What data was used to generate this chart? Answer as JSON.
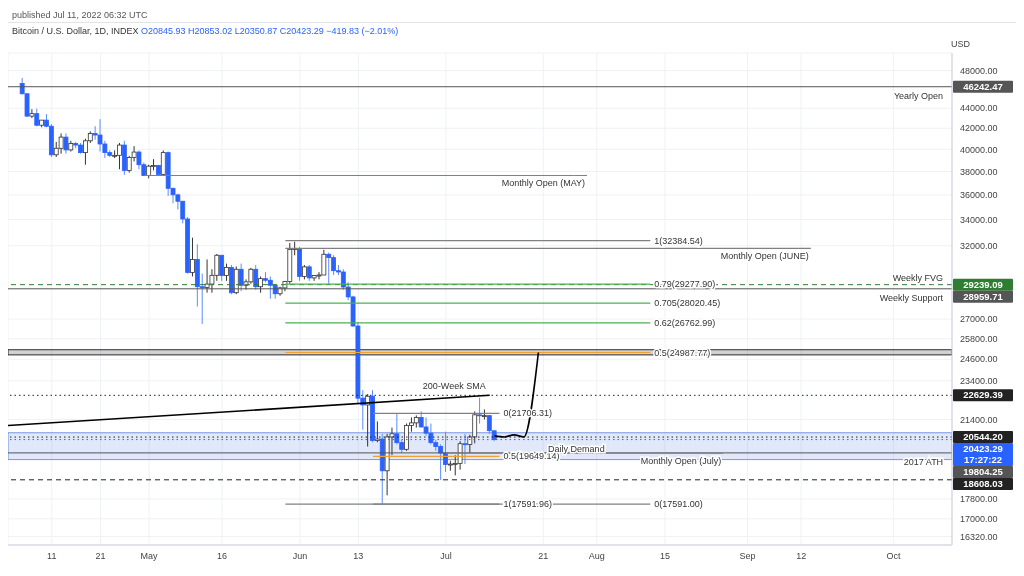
{
  "chart_data": {
    "type": "candlestick",
    "title": "Bitcoin / U.S. Dollar, 1D, INDEX",
    "subtitle": "O20845.93 H20853.02 L20350.87 C20423.29 −419.83 (−2.01%)",
    "ylabel": "USD",
    "x": [
      "2022-04-05",
      "2022-04-06",
      "2022-04-07",
      "2022-04-08",
      "2022-04-09",
      "2022-04-10",
      "2022-04-11",
      "2022-04-12",
      "2022-04-13",
      "2022-04-14",
      "2022-04-15",
      "2022-04-16",
      "2022-04-17",
      "2022-04-18",
      "2022-04-19",
      "2022-04-20",
      "2022-04-21",
      "2022-04-22",
      "2022-04-23",
      "2022-04-24",
      "2022-04-25",
      "2022-04-26",
      "2022-04-27",
      "2022-04-28",
      "2022-04-29",
      "2022-04-30",
      "2022-05-01",
      "2022-05-02",
      "2022-05-03",
      "2022-05-04",
      "2022-05-05",
      "2022-05-06",
      "2022-05-07",
      "2022-05-08",
      "2022-05-09",
      "2022-05-10",
      "2022-05-11",
      "2022-05-12",
      "2022-05-13",
      "2022-05-14",
      "2022-05-15",
      "2022-05-16",
      "2022-05-17",
      "2022-05-18",
      "2022-05-19",
      "2022-05-20",
      "2022-05-21",
      "2022-05-22",
      "2022-05-23",
      "2022-05-24",
      "2022-05-25",
      "2022-05-26",
      "2022-05-27",
      "2022-05-28",
      "2022-05-29",
      "2022-05-30",
      "2022-05-31",
      "2022-06-01",
      "2022-06-02",
      "2022-06-03",
      "2022-06-04",
      "2022-06-05",
      "2022-06-06",
      "2022-06-07",
      "2022-06-08",
      "2022-06-09",
      "2022-06-10",
      "2022-06-11",
      "2022-06-12",
      "2022-06-13",
      "2022-06-14",
      "2022-06-15",
      "2022-06-16",
      "2022-06-17",
      "2022-06-18",
      "2022-06-19",
      "2022-06-20",
      "2022-06-21",
      "2022-06-22",
      "2022-06-23",
      "2022-06-24",
      "2022-06-25",
      "2022-06-26",
      "2022-06-27",
      "2022-06-28",
      "2022-06-29",
      "2022-06-30",
      "2022-07-01",
      "2022-07-02",
      "2022-07-03",
      "2022-07-04",
      "2022-07-05",
      "2022-07-06",
      "2022-07-07",
      "2022-07-08",
      "2022-07-09",
      "2022-07-10",
      "2022-07-11"
    ],
    "ohlc": [
      [
        46600,
        47200,
        45400,
        45500
      ],
      [
        45500,
        45500,
        43100,
        43200
      ],
      [
        43200,
        43900,
        43000,
        43450
      ],
      [
        43450,
        43950,
        42200,
        42300
      ],
      [
        42300,
        42800,
        42100,
        42800
      ],
      [
        42800,
        43400,
        42100,
        42200
      ],
      [
        42200,
        42400,
        39300,
        39500
      ],
      [
        39500,
        40700,
        39300,
        40100
      ],
      [
        40100,
        41500,
        39600,
        41150
      ],
      [
        41150,
        41500,
        39600,
        39950
      ],
      [
        39950,
        40800,
        39800,
        40550
      ],
      [
        40550,
        40700,
        40100,
        40400
      ],
      [
        40400,
        40600,
        39600,
        39700
      ],
      [
        39700,
        41000,
        38600,
        40800
      ],
      [
        40800,
        41700,
        40600,
        41500
      ],
      [
        41500,
        42200,
        40900,
        41350
      ],
      [
        41350,
        42900,
        39800,
        40500
      ],
      [
        40500,
        40800,
        39200,
        39700
      ],
      [
        39700,
        39900,
        39300,
        39450
      ],
      [
        39450,
        39900,
        39200,
        39450
      ],
      [
        39450,
        40600,
        38200,
        40400
      ],
      [
        40400,
        40800,
        37700,
        38100
      ],
      [
        38100,
        39400,
        37900,
        39250
      ],
      [
        39250,
        40300,
        38900,
        39750
      ],
      [
        39750,
        39900,
        38200,
        38600
      ],
      [
        38600,
        38800,
        37600,
        37650
      ],
      [
        37650,
        38600,
        37400,
        38470
      ],
      [
        38470,
        39100,
        38100,
        38530
      ],
      [
        38530,
        38600,
        37600,
        37750
      ],
      [
        37750,
        39900,
        37600,
        39700
      ],
      [
        39700,
        39800,
        35900,
        36550
      ],
      [
        36550,
        36600,
        35300,
        36000
      ],
      [
        36000,
        36100,
        34800,
        35470
      ],
      [
        35470,
        35500,
        33700,
        34040
      ],
      [
        34040,
        34200,
        30000,
        30080
      ],
      [
        30080,
        32600,
        29800,
        31000
      ],
      [
        31000,
        32100,
        27800,
        29100
      ],
      [
        29100,
        30000,
        26700,
        29050
      ],
      [
        29050,
        31000,
        28700,
        29280
      ],
      [
        29280,
        30300,
        28700,
        29880
      ],
      [
        29880,
        31400,
        29500,
        31300
      ],
      [
        31300,
        31300,
        29500,
        29860
      ],
      [
        29860,
        30700,
        29500,
        30430
      ],
      [
        30430,
        30600,
        28600,
        28700
      ],
      [
        28700,
        30500,
        28600,
        30300
      ],
      [
        30300,
        30700,
        28800,
        29200
      ],
      [
        29200,
        29600,
        28900,
        29430
      ],
      [
        29430,
        30400,
        29300,
        30300
      ],
      [
        30300,
        30600,
        28900,
        29100
      ],
      [
        29100,
        29800,
        28700,
        29650
      ],
      [
        29650,
        30100,
        29400,
        29540
      ],
      [
        29540,
        29800,
        28300,
        29200
      ],
      [
        29200,
        29300,
        28300,
        28630
      ],
      [
        28630,
        29100,
        28500,
        29020
      ],
      [
        29020,
        29500,
        28800,
        29450
      ],
      [
        29450,
        32200,
        29300,
        31730
      ],
      [
        31730,
        32300,
        31300,
        31800
      ],
      [
        31800,
        31900,
        29500,
        29800
      ],
      [
        29800,
        30600,
        29600,
        30470
      ],
      [
        30470,
        30600,
        29500,
        29700
      ],
      [
        29700,
        29900,
        29500,
        29860
      ],
      [
        29860,
        30100,
        29600,
        29900
      ],
      [
        29900,
        31700,
        29900,
        31370
      ],
      [
        31370,
        31500,
        29300,
        31130
      ],
      [
        31130,
        31300,
        29900,
        30200
      ],
      [
        30200,
        30600,
        29900,
        30110
      ],
      [
        30110,
        30300,
        28900,
        29080
      ],
      [
        29080,
        29400,
        28200,
        28420
      ],
      [
        28420,
        28500,
        26500,
        26570
      ],
      [
        26570,
        26800,
        22200,
        22480
      ],
      [
        22480,
        22900,
        20900,
        22130
      ],
      [
        22130,
        22700,
        20100,
        22580
      ],
      [
        22580,
        22900,
        20300,
        20380
      ],
      [
        20380,
        21300,
        20300,
        20450
      ],
      [
        20450,
        20700,
        17600,
        19000
      ],
      [
        19000,
        20700,
        17950,
        20550
      ],
      [
        20550,
        21000,
        19700,
        20700
      ],
      [
        20700,
        21700,
        20200,
        20280
      ],
      [
        20280,
        20400,
        19800,
        19970
      ],
      [
        19970,
        21200,
        19900,
        21100
      ],
      [
        21100,
        21500,
        20800,
        21230
      ],
      [
        21230,
        21600,
        21000,
        21500
      ],
      [
        21500,
        21800,
        21000,
        21030
      ],
      [
        21030,
        21500,
        20600,
        20730
      ],
      [
        20730,
        21200,
        20200,
        20280
      ],
      [
        20280,
        20400,
        19900,
        20100
      ],
      [
        20100,
        20200,
        18600,
        19800
      ],
      [
        19800,
        20800,
        18950,
        19280
      ],
      [
        19280,
        19450,
        19000,
        19300
      ],
      [
        19300,
        19700,
        18800,
        19330
      ],
      [
        19330,
        20350,
        19050,
        20230
      ],
      [
        20230,
        20700,
        19300,
        20190
      ],
      [
        20190,
        20650,
        19800,
        20550
      ],
      [
        20550,
        21800,
        20250,
        21630
      ],
      [
        21630,
        22500,
        21200,
        21590
      ],
      [
        21590,
        21900,
        21400,
        21590
      ],
      [
        21590,
        21600,
        20700,
        20850
      ],
      [
        20845.93,
        20853.02,
        20350.87,
        20423.29
      ]
    ],
    "series": [
      {
        "type": "line",
        "color": "#000000",
        "x": [
          "2022-04-02",
          "2022-07-10"
        ],
        "values": [
          21100,
          22629.39
        ]
      },
      {
        "type": "line",
        "color": "#808080",
        "x": [
          "2022-04-30",
          "2022-07-30"
        ],
        "values": [
          37650,
          37650
        ]
      },
      {
        "type": "line",
        "color": "#808080",
        "x": [
          "2022-05-29",
          "2022-09-14"
        ],
        "values": [
          31800,
          31800
        ]
      },
      {
        "type": "line",
        "color": "#808080",
        "x": [
          "2022-05-29",
          "2022-08-12"
        ],
        "values": [
          32384.54,
          32384.54
        ]
      },
      {
        "type": "line",
        "color": "#4caf50",
        "x": [
          "2022-05-29",
          "2022-08-12"
        ],
        "values": [
          29277.9,
          29277.9
        ]
      },
      {
        "type": "line",
        "color": "#4caf50",
        "x": [
          "2022-05-29",
          "2022-08-12"
        ],
        "values": [
          28020.45,
          28020.45
        ]
      },
      {
        "type": "line",
        "color": "#4caf50",
        "x": [
          "2022-05-29",
          "2022-08-12"
        ],
        "values": [
          26762.99,
          26762.99
        ]
      },
      {
        "type": "line",
        "color": "#f0a030",
        "x": [
          "2022-05-29",
          "2022-08-12"
        ],
        "values": [
          24987.77,
          24987.77
        ]
      },
      {
        "type": "line",
        "color": "#808080",
        "x": [
          "2022-05-29",
          "2022-08-12"
        ],
        "values": [
          17591,
          17591
        ]
      },
      {
        "type": "line",
        "color": "#808080",
        "x": [
          "2022-06-16",
          "2022-07-12"
        ],
        "values": [
          21706.31,
          21706.31
        ]
      },
      {
        "type": "line",
        "color": "#f0a030",
        "x": [
          "2022-06-16",
          "2022-07-12"
        ],
        "values": [
          19649.14,
          19649.14
        ]
      },
      {
        "type": "line",
        "color": "#808080",
        "x": [
          "2022-06-16",
          "2022-07-12"
        ],
        "values": [
          17591.96,
          17591.96
        ]
      },
      {
        "type": "line",
        "color": "#808080",
        "x": [
          "2022-07-01",
          "2022-08-27"
        ],
        "values": [
          19790,
          19790
        ]
      },
      {
        "type": "line",
        "color": "#000000",
        "x": [
          "2022-07-11",
          "2022-07-13",
          "2022-07-15",
          "2022-07-17",
          "2022-07-20"
        ],
        "values": [
          20600,
          20550,
          20650,
          20550,
          24987.77
        ]
      }
    ],
    "ref_lines": [
      {
        "axis": "y",
        "value": 46242.47,
        "label": "46242.47",
        "color": "#555555"
      },
      {
        "axis": "y",
        "value": 29239.09,
        "label": "29239.09",
        "color": "#2e7d32",
        "line_style": "dashed"
      },
      {
        "axis": "y",
        "value": 28959.71,
        "label": "28959.71",
        "color": "#555555"
      },
      {
        "axis": "y",
        "value": 22629.39,
        "label": "22629.39",
        "color": "#222222",
        "line_style": "dotted"
      },
      {
        "axis": "y",
        "value": 20544.2,
        "label": "20544.20",
        "color": "#222222",
        "line_style": "dotted"
      },
      {
        "axis": "y",
        "value": 20423.29,
        "label": "20423.29\n17:27:22",
        "color": "#2962ff",
        "line_style": "dotted"
      },
      {
        "axis": "y",
        "value": 19804.25,
        "label": "19804.25",
        "color": "#555555"
      },
      {
        "axis": "y",
        "value": 18608.03,
        "label": "18608.03",
        "color": "#222222",
        "line_style": "dashed"
      }
    ],
    "bands": [
      {
        "axis": "y",
        "from": 19500,
        "to": 20750,
        "color": "#5b7fe0"
      },
      {
        "axis": "y",
        "from": 24850,
        "to": 25150,
        "color": "#000000"
      }
    ],
    "annotations": [
      "published Jul 11, 2022 06:32 UTC",
      {
        "text": "Yearly Open",
        "x": "2022-10-12",
        "y": 46242.47
      },
      {
        "text": "Monthly Open (MAY)",
        "x": "2022-07-30",
        "y": 37650
      },
      {
        "text": "Monthly Open (JUNE)",
        "x": "2022-09-14",
        "y": 31800
      },
      {
        "text": "1(32384.54)",
        "x": "2022-08-12",
        "y": 32384.54
      },
      {
        "text": "0.79(29277.90)",
        "x": "2022-08-12",
        "y": 29277.9
      },
      {
        "text": "0.705(28020.45)",
        "x": "2022-08-12",
        "y": 28020.45
      },
      {
        "text": "0.62(26762.99)",
        "x": "2022-08-12",
        "y": 26762.99
      },
      {
        "text": "0.5(24987.77)",
        "x": "2022-08-12",
        "y": 24987.77
      },
      {
        "text": "0(17591.00)",
        "x": "2022-08-12",
        "y": 17591
      },
      {
        "text": "0(21706.31)",
        "x": "2022-07-12",
        "y": 21706.31
      },
      {
        "text": "0.5(19649.14)",
        "x": "2022-07-12",
        "y": 19649.14
      },
      {
        "text": "1(17591.96)",
        "x": "2022-07-12",
        "y": 17591.96
      },
      {
        "text": "Daily Demand",
        "x": "2022-07-22",
        "y": 20000
      },
      {
        "text": "Monthly Open (July)",
        "x": "2022-08-27",
        "y": 19790
      },
      {
        "text": "Weekly FVG",
        "x": "2022-10-12",
        "y": 29239.09
      },
      {
        "text": "Weekly Support",
        "x": "2022-10-12",
        "y": 28959.71
      },
      {
        "text": "2017 ATH",
        "x": "2022-10-12",
        "y": 19804.25
      },
      {
        "text": "200-Week SMA",
        "x": "2022-07-10",
        "y": 22629.39
      }
    ],
    "log": "y",
    "grid": true,
    "xlim": [
      "2022-04-02",
      "2022-10-13"
    ],
    "xticks": [
      {
        "value": "2022-04-11",
        "label": "11"
      },
      {
        "value": "2022-04-21",
        "label": "21"
      },
      {
        "value": "2022-05-01",
        "label": "May"
      },
      {
        "value": "2022-05-16",
        "label": "16"
      },
      {
        "value": "2022-06-01",
        "label": "Jun"
      },
      {
        "value": "2022-06-13",
        "label": "13"
      },
      {
        "value": "2022-07-01",
        "label": "Jul"
      },
      {
        "value": "2022-07-21",
        "label": "21"
      },
      {
        "value": "2022-08-01",
        "label": "Aug"
      },
      {
        "value": "2022-08-15",
        "label": "15"
      },
      {
        "value": "2022-09-01",
        "label": "Sep"
      },
      {
        "value": "2022-09-12",
        "label": "12"
      },
      {
        "value": "2022-10-01",
        "label": "Oct"
      }
    ],
    "ylim": [
      16000,
      50000
    ],
    "yticks": [
      {
        "value": 48000,
        "label": "48000.00"
      },
      {
        "value": 44000,
        "label": "44000.00"
      },
      {
        "value": 42000,
        "label": "42000.00"
      },
      {
        "value": 40000,
        "label": "40000.00"
      },
      {
        "value": 38000,
        "label": "38000.00"
      },
      {
        "value": 36000,
        "label": "36000.00"
      },
      {
        "value": 34000,
        "label": "34000.00"
      },
      {
        "value": 32000,
        "label": "32000.00"
      },
      {
        "value": 27000,
        "label": "27000.00"
      },
      {
        "value": 25800,
        "label": "25800.00"
      },
      {
        "value": 24600,
        "label": "24600.00"
      },
      {
        "value": 23400,
        "label": "23400.00"
      },
      {
        "value": 21400,
        "label": "21400.00"
      },
      {
        "value": 17800,
        "label": "17800.00"
      },
      {
        "value": 17000,
        "label": "17000.00"
      },
      {
        "value": 16320,
        "label": "16320.00"
      }
    ]
  }
}
